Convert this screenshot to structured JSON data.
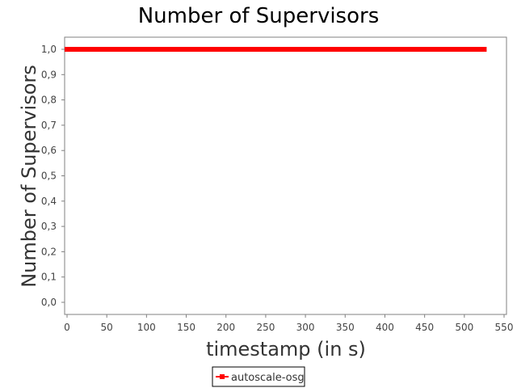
{
  "chart_data": {
    "type": "line",
    "title": "Number of Supervisors",
    "xlabel": "timestamp (in s)",
    "ylabel": "Number of Supervisors",
    "xlim": [
      0,
      550
    ],
    "ylim": [
      0.0,
      1.0
    ],
    "x_ticks": [
      0,
      50,
      100,
      150,
      200,
      250,
      300,
      350,
      400,
      450,
      500,
      550
    ],
    "x_tick_labels": [
      "0",
      "50",
      "100",
      "150",
      "200",
      "250",
      "300",
      "350",
      "400",
      "450",
      "500",
      "550"
    ],
    "y_ticks": [
      0.0,
      0.1,
      0.2,
      0.3,
      0.4,
      0.5,
      0.6,
      0.7,
      0.8,
      0.9,
      1.0
    ],
    "y_tick_labels": [
      "0,0",
      "0,1",
      "0,2",
      "0,3",
      "0,4",
      "0,5",
      "0,6",
      "0,7",
      "0,8",
      "0,9",
      "1,0"
    ],
    "grid": false,
    "legend_position": "bottom-center",
    "series": [
      {
        "name": "autoscale-osg",
        "color": "#ff0000",
        "marker": "square",
        "x_start": 0,
        "x_end": 525,
        "x_step": 5,
        "value": 1.0
      }
    ]
  }
}
